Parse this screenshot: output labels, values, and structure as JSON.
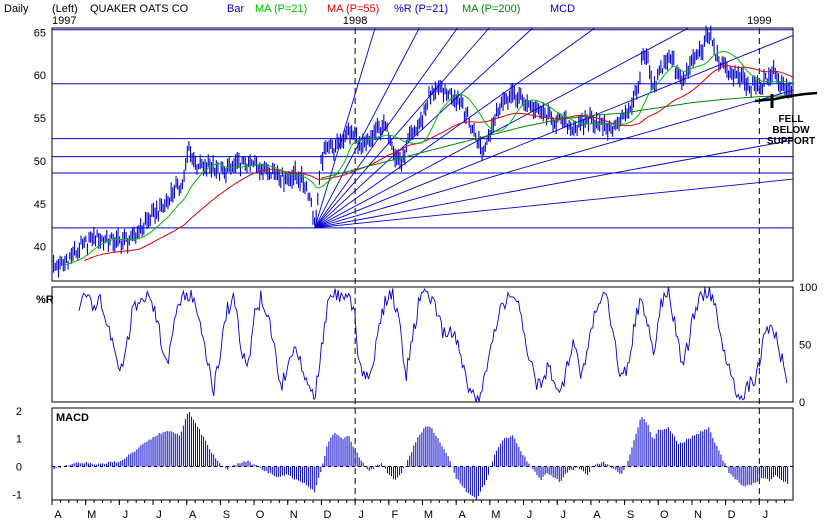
{
  "header": {
    "period": "Daily",
    "axis_side": "(Left)",
    "company": "QUAKER OATS CO",
    "start_year": "1997",
    "legend": [
      {
        "label": "Bar",
        "color": "#0000cc"
      },
      {
        "label": "MA (P=21)",
        "color": "#00bb00"
      },
      {
        "label": "MA (P=55)",
        "color": "#dd0000"
      },
      {
        "label": "%R (P=21)",
        "color": "#0000cc"
      },
      {
        "label": "MA (P=200)",
        "color": "#008800"
      },
      {
        "label": "MCD",
        "color": "#0000cc"
      }
    ]
  },
  "colors": {
    "price": "#0000cc",
    "grid": "#0000cc",
    "ma21": "#00bb00",
    "ma55": "#dd0000",
    "ma200": "#008800",
    "macd": "#0000cc",
    "frame": "#000000"
  },
  "chart_data": [
    {
      "type": "line",
      "panel": "price",
      "ylim": [
        36,
        65.5
      ],
      "yticks": [
        40,
        45,
        50,
        55,
        60,
        65
      ],
      "year_markers": [
        {
          "month_index": 9,
          "label": "1998"
        },
        {
          "month_index": 21,
          "label": "1999"
        }
      ],
      "horizontal_support": [
        42.2,
        48.6,
        50.5,
        52.6,
        59.0,
        65.3
      ],
      "fan_origin": {
        "month_index": 7.8,
        "value": 42.2
      },
      "fan_slopes_per_month": [
        13.0,
        7.5,
        5.5,
        4.5,
        3.6,
        2.8,
        2.1,
        1.58,
        1.13,
        0.72,
        0.4
      ],
      "months": [
        "A",
        "M",
        "J",
        "J",
        "A",
        "S",
        "O",
        "N",
        "D",
        "J",
        "F",
        "M",
        "A",
        "M",
        "J",
        "J",
        "A",
        "S",
        "O",
        "N",
        "D",
        "J"
      ],
      "price_anchors": [
        [
          0,
          37.5
        ],
        [
          0.3,
          38.0
        ],
        [
          0.6,
          39.0
        ],
        [
          1.0,
          40.5
        ],
        [
          1.3,
          41.2
        ],
        [
          1.6,
          40.8
        ],
        [
          2.0,
          40.6
        ],
        [
          2.4,
          41.0
        ],
        [
          2.7,
          42.5
        ],
        [
          3.0,
          43.8
        ],
        [
          3.3,
          44.5
        ],
        [
          3.6,
          46.5
        ],
        [
          3.9,
          47.5
        ],
        [
          4.05,
          51.5
        ],
        [
          4.2,
          50.0
        ],
        [
          4.5,
          49.2
        ],
        [
          4.8,
          49.5
        ],
        [
          5.0,
          48.5
        ],
        [
          5.3,
          49.2
        ],
        [
          5.6,
          49.8
        ],
        [
          6.0,
          49.5
        ],
        [
          6.3,
          49.0
        ],
        [
          6.6,
          48.8
        ],
        [
          6.9,
          48.0
        ],
        [
          7.2,
          48.5
        ],
        [
          7.5,
          47.5
        ],
        [
          7.7,
          45.5
        ],
        [
          7.8,
          42.5
        ],
        [
          7.9,
          46.0
        ],
        [
          8.0,
          50.0
        ],
        [
          8.2,
          52.0
        ],
        [
          8.4,
          51.5
        ],
        [
          8.6,
          52.5
        ],
        [
          8.8,
          53.2
        ],
        [
          9.0,
          53.0
        ],
        [
          9.2,
          51.5
        ],
        [
          9.4,
          52.0
        ],
        [
          9.6,
          53.5
        ],
        [
          9.8,
          54.0
        ],
        [
          10.0,
          53.5
        ],
        [
          10.2,
          50.5
        ],
        [
          10.4,
          49.8
        ],
        [
          10.6,
          52.5
        ],
        [
          10.8,
          53.5
        ],
        [
          11.0,
          55.0
        ],
        [
          11.2,
          57.5
        ],
        [
          11.4,
          58.5
        ],
        [
          11.6,
          58.0
        ],
        [
          11.9,
          57.8
        ],
        [
          12.2,
          56.5
        ],
        [
          12.5,
          53.5
        ],
        [
          12.8,
          51.2
        ],
        [
          13.0,
          53.5
        ],
        [
          13.3,
          56.5
        ],
        [
          13.6,
          57.5
        ],
        [
          13.9,
          57.5
        ],
        [
          14.2,
          56.5
        ],
        [
          14.5,
          55.5
        ],
        [
          14.8,
          55.0
        ],
        [
          15.1,
          54.5
        ],
        [
          15.4,
          54.0
        ],
        [
          15.7,
          53.8
        ],
        [
          15.9,
          55.0
        ],
        [
          16.2,
          54.5
        ],
        [
          16.5,
          53.8
        ],
        [
          16.8,
          54.0
        ],
        [
          17.0,
          55.5
        ],
        [
          17.2,
          56.5
        ],
        [
          17.4,
          58.5
        ],
        [
          17.55,
          62.5
        ],
        [
          17.7,
          61.5
        ],
        [
          17.85,
          58.0
        ],
        [
          18.0,
          60.0
        ],
        [
          18.2,
          61.5
        ],
        [
          18.4,
          62.0
        ],
        [
          18.6,
          60.0
        ],
        [
          18.8,
          59.5
        ],
        [
          19.0,
          61.5
        ],
        [
          19.2,
          62.5
        ],
        [
          19.4,
          64.0
        ],
        [
          19.55,
          64.8
        ],
        [
          19.7,
          62.5
        ],
        [
          19.9,
          61.0
        ],
        [
          20.1,
          60.5
        ],
        [
          20.3,
          60.0
        ],
        [
          20.5,
          59.3
        ],
        [
          20.7,
          58.5
        ],
        [
          20.9,
          58.8
        ],
        [
          21.0,
          58.2
        ],
        [
          21.2,
          59.5
        ],
        [
          21.4,
          60.3
        ],
        [
          21.55,
          59.5
        ],
        [
          21.7,
          59.0
        ],
        [
          21.85,
          58.5
        ]
      ],
      "ma200_anchors": [
        [
          8.0,
          48.0
        ],
        [
          9.0,
          49.0
        ],
        [
          10.0,
          50.0
        ],
        [
          11.0,
          51.0
        ],
        [
          12.0,
          52.0
        ],
        [
          13.0,
          53.0
        ],
        [
          14.0,
          54.0
        ],
        [
          15.0,
          54.8
        ],
        [
          16.0,
          55.3
        ],
        [
          17.0,
          55.6
        ],
        [
          18.0,
          56.2
        ],
        [
          19.0,
          56.8
        ],
        [
          20.0,
          57.2
        ],
        [
          21.0,
          57.5
        ],
        [
          21.9,
          57.6
        ]
      ],
      "annotation": {
        "lines": [
          "FELL",
          "BELOW",
          "SUPPORT"
        ]
      }
    },
    {
      "type": "line",
      "panel": "williams_r",
      "title": "%R",
      "ylim": [
        0,
        100
      ],
      "yticks": [
        0,
        50,
        100
      ],
      "anchors": [
        [
          0.8,
          85
        ],
        [
          1.0,
          95
        ],
        [
          1.2,
          80
        ],
        [
          1.4,
          90
        ],
        [
          1.6,
          70
        ],
        [
          1.8,
          55
        ],
        [
          2.0,
          20
        ],
        [
          2.2,
          45
        ],
        [
          2.4,
          80
        ],
        [
          2.6,
          90
        ],
        [
          2.8,
          95
        ],
        [
          3.0,
          85
        ],
        [
          3.2,
          60
        ],
        [
          3.4,
          30
        ],
        [
          3.6,
          65
        ],
        [
          3.8,
          85
        ],
        [
          4.0,
          95
        ],
        [
          4.2,
          90
        ],
        [
          4.4,
          70
        ],
        [
          4.6,
          35
        ],
        [
          4.8,
          10
        ],
        [
          5.0,
          45
        ],
        [
          5.2,
          80
        ],
        [
          5.4,
          90
        ],
        [
          5.6,
          50
        ],
        [
          5.8,
          25
        ],
        [
          6.0,
          75
        ],
        [
          6.2,
          90
        ],
        [
          6.4,
          80
        ],
        [
          6.6,
          45
        ],
        [
          6.8,
          15
        ],
        [
          7.0,
          25
        ],
        [
          7.2,
          55
        ],
        [
          7.4,
          35
        ],
        [
          7.6,
          12
        ],
        [
          7.8,
          5
        ],
        [
          8.0,
          45
        ],
        [
          8.2,
          85
        ],
        [
          8.4,
          95
        ],
        [
          8.6,
          88
        ],
        [
          8.8,
          92
        ],
        [
          9.0,
          80
        ],
        [
          9.1,
          30
        ],
        [
          9.3,
          22
        ],
        [
          9.5,
          30
        ],
        [
          9.7,
          65
        ],
        [
          9.9,
          88
        ],
        [
          10.1,
          95
        ],
        [
          10.3,
          72
        ],
        [
          10.5,
          20
        ],
        [
          10.7,
          55
        ],
        [
          10.9,
          88
        ],
        [
          11.1,
          95
        ],
        [
          11.3,
          90
        ],
        [
          11.5,
          70
        ],
        [
          11.7,
          55
        ],
        [
          11.9,
          62
        ],
        [
          12.1,
          45
        ],
        [
          12.3,
          18
        ],
        [
          12.5,
          6
        ],
        [
          12.7,
          3
        ],
        [
          12.9,
          25
        ],
        [
          13.1,
          55
        ],
        [
          13.3,
          78
        ],
        [
          13.5,
          90
        ],
        [
          13.7,
          95
        ],
        [
          13.9,
          78
        ],
        [
          14.1,
          48
        ],
        [
          14.3,
          22
        ],
        [
          14.5,
          12
        ],
        [
          14.7,
          30
        ],
        [
          14.9,
          22
        ],
        [
          15.1,
          8
        ],
        [
          15.3,
          30
        ],
        [
          15.5,
          55
        ],
        [
          15.7,
          15
        ],
        [
          15.9,
          45
        ],
        [
          16.1,
          75
        ],
        [
          16.3,
          92
        ],
        [
          16.5,
          88
        ],
        [
          16.7,
          50
        ],
        [
          16.9,
          20
        ],
        [
          17.1,
          32
        ],
        [
          17.3,
          70
        ],
        [
          17.5,
          92
        ],
        [
          17.7,
          65
        ],
        [
          17.9,
          42
        ],
        [
          18.1,
          88
        ],
        [
          18.3,
          95
        ],
        [
          18.5,
          68
        ],
        [
          18.7,
          32
        ],
        [
          18.9,
          52
        ],
        [
          19.1,
          82
        ],
        [
          19.3,
          92
        ],
        [
          19.5,
          98
        ],
        [
          19.7,
          82
        ],
        [
          19.9,
          52
        ],
        [
          20.1,
          32
        ],
        [
          20.3,
          12
        ],
        [
          20.5,
          5
        ],
        [
          20.7,
          14
        ],
        [
          20.9,
          22
        ],
        [
          21.1,
          52
        ],
        [
          21.3,
          68
        ],
        [
          21.5,
          55
        ],
        [
          21.7,
          35
        ],
        [
          21.85,
          5
        ]
      ]
    },
    {
      "type": "bar",
      "panel": "macd",
      "title": "MACD",
      "ylim": [
        -1.2,
        2.1
      ],
      "yticks": [
        -1,
        0,
        1,
        2
      ],
      "anchors": [
        [
          0,
          -0.1
        ],
        [
          0.3,
          0.0
        ],
        [
          0.6,
          0.1
        ],
        [
          1.0,
          0.15
        ],
        [
          1.3,
          0.1
        ],
        [
          1.6,
          0.12
        ],
        [
          2.0,
          0.2
        ],
        [
          2.4,
          0.5
        ],
        [
          2.8,
          0.9
        ],
        [
          3.2,
          1.2
        ],
        [
          3.5,
          1.3
        ],
        [
          3.8,
          1.1
        ],
        [
          4.05,
          2.0
        ],
        [
          4.3,
          1.5
        ],
        [
          4.6,
          0.8
        ],
        [
          4.9,
          0.2
        ],
        [
          5.2,
          -0.1
        ],
        [
          5.5,
          0.1
        ],
        [
          5.8,
          0.2
        ],
        [
          6.1,
          0.0
        ],
        [
          6.4,
          -0.2
        ],
        [
          6.7,
          -0.4
        ],
        [
          7.0,
          -0.3
        ],
        [
          7.3,
          -0.5
        ],
        [
          7.6,
          -0.7
        ],
        [
          7.8,
          -0.9
        ],
        [
          8.0,
          -0.1
        ],
        [
          8.2,
          0.9
        ],
        [
          8.4,
          1.2
        ],
        [
          8.6,
          1.0
        ],
        [
          8.8,
          1.1
        ],
        [
          9.0,
          0.6
        ],
        [
          9.2,
          0.2
        ],
        [
          9.4,
          -0.2
        ],
        [
          9.6,
          0.0
        ],
        [
          9.8,
          0.1
        ],
        [
          10.0,
          -0.3
        ],
        [
          10.2,
          -0.5
        ],
        [
          10.4,
          -0.2
        ],
        [
          10.6,
          0.3
        ],
        [
          10.8,
          0.9
        ],
        [
          11.0,
          1.3
        ],
        [
          11.2,
          1.5
        ],
        [
          11.4,
          1.1
        ],
        [
          11.6,
          0.7
        ],
        [
          11.8,
          0.3
        ],
        [
          12.0,
          -0.4
        ],
        [
          12.3,
          -0.9
        ],
        [
          12.6,
          -1.15
        ],
        [
          12.9,
          -0.5
        ],
        [
          13.1,
          0.3
        ],
        [
          13.4,
          1.0
        ],
        [
          13.7,
          1.1
        ],
        [
          13.9,
          0.6
        ],
        [
          14.1,
          0.2
        ],
        [
          14.3,
          -0.1
        ],
        [
          14.5,
          -0.5
        ],
        [
          14.7,
          -0.2
        ],
        [
          14.9,
          -0.4
        ],
        [
          15.1,
          -0.55
        ],
        [
          15.3,
          -0.2
        ],
        [
          15.6,
          0.0
        ],
        [
          15.9,
          -0.3
        ],
        [
          16.1,
          0.1
        ],
        [
          16.4,
          0.15
        ],
        [
          16.7,
          -0.1
        ],
        [
          16.9,
          -0.3
        ],
        [
          17.1,
          0.2
        ],
        [
          17.3,
          1.0
        ],
        [
          17.5,
          1.8
        ],
        [
          17.7,
          1.5
        ],
        [
          17.85,
          0.9
        ],
        [
          18.0,
          1.3
        ],
        [
          18.3,
          1.4
        ],
        [
          18.6,
          0.8
        ],
        [
          18.9,
          1.0
        ],
        [
          19.2,
          1.2
        ],
        [
          19.5,
          1.4
        ],
        [
          19.7,
          0.8
        ],
        [
          19.9,
          0.3
        ],
        [
          20.1,
          -0.2
        ],
        [
          20.3,
          -0.45
        ],
        [
          20.5,
          -0.7
        ],
        [
          20.7,
          -0.65
        ],
        [
          20.9,
          -0.6
        ],
        [
          21.1,
          -0.4
        ],
        [
          21.3,
          -0.5
        ],
        [
          21.5,
          -0.3
        ],
        [
          21.7,
          -0.5
        ],
        [
          21.85,
          -0.6
        ]
      ]
    }
  ]
}
